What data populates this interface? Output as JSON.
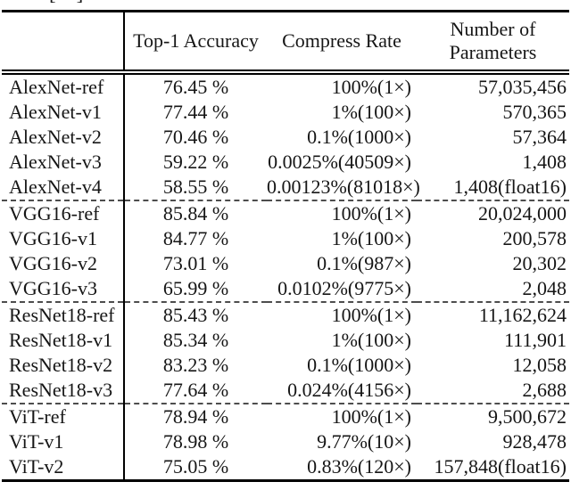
{
  "citation_fragment": "[    ]",
  "table": {
    "headers": {
      "model": "",
      "accuracy": "Top-1 Accuracy",
      "compress": "Compress Rate",
      "params_line1": "Number of",
      "params_line2": "Parameters"
    },
    "sections": [
      {
        "name": "AlexNet",
        "rows": [
          {
            "model": "AlexNet-ref",
            "accuracy": "76.45 %",
            "compress": "100%(1×)",
            "params": "57,035,456"
          },
          {
            "model": "AlexNet-v1",
            "accuracy": "77.44 %",
            "compress": "1%(100×)",
            "params": "570,365"
          },
          {
            "model": "AlexNet-v2",
            "accuracy": "70.46 %",
            "compress": "0.1%(1000×)",
            "params": "57,364"
          },
          {
            "model": "AlexNet-v3",
            "accuracy": "59.22 %",
            "compress": "0.0025%(40509×)",
            "params": "1,408"
          },
          {
            "model": "AlexNet-v4",
            "accuracy": "58.55 %",
            "compress": "0.00123%(81018×)",
            "params": "1,408(float16)"
          }
        ]
      },
      {
        "name": "VGG16",
        "rows": [
          {
            "model": "VGG16-ref",
            "accuracy": "85.84 %",
            "compress": "100%(1×)",
            "params": "20,024,000"
          },
          {
            "model": "VGG16-v1",
            "accuracy": "84.77 %",
            "compress": "1%(100×)",
            "params": "200,578"
          },
          {
            "model": "VGG16-v2",
            "accuracy": "73.01 %",
            "compress": "0.1%(987×)",
            "params": "20,302"
          },
          {
            "model": "VGG16-v3",
            "accuracy": "65.99 %",
            "compress": "0.0102%(9775×)",
            "params": "2,048"
          }
        ]
      },
      {
        "name": "ResNet18",
        "rows": [
          {
            "model": "ResNet18-ref",
            "accuracy": "85.43 %",
            "compress": "100%(1×)",
            "params": "11,162,624"
          },
          {
            "model": "ResNet18-v1",
            "accuracy": "85.34 %",
            "compress": "1%(100×)",
            "params": "111,901"
          },
          {
            "model": "ResNet18-v2",
            "accuracy": "83.23 %",
            "compress": "0.1%(1000×)",
            "params": "12,058"
          },
          {
            "model": "ResNet18-v3",
            "accuracy": "77.64 %",
            "compress": "0.024%(4156×)",
            "params": "2,688"
          }
        ]
      },
      {
        "name": "ViT",
        "rows": [
          {
            "model": "ViT-ref",
            "accuracy": "78.94 %",
            "compress": "100%(1×)",
            "params": "9,500,672"
          },
          {
            "model": "ViT-v1",
            "accuracy": "78.98 %",
            "compress": "9.77%(10×)",
            "params": "928,478"
          },
          {
            "model": "ViT-v2",
            "accuracy": "75.05 %",
            "compress": "0.83%(120×)",
            "params": "157,848(float16)"
          }
        ]
      }
    ]
  },
  "colors": {
    "text": "#161616",
    "rule": "#000000",
    "dashed_rule": "#4d4d4d",
    "background": "#ffffff"
  }
}
